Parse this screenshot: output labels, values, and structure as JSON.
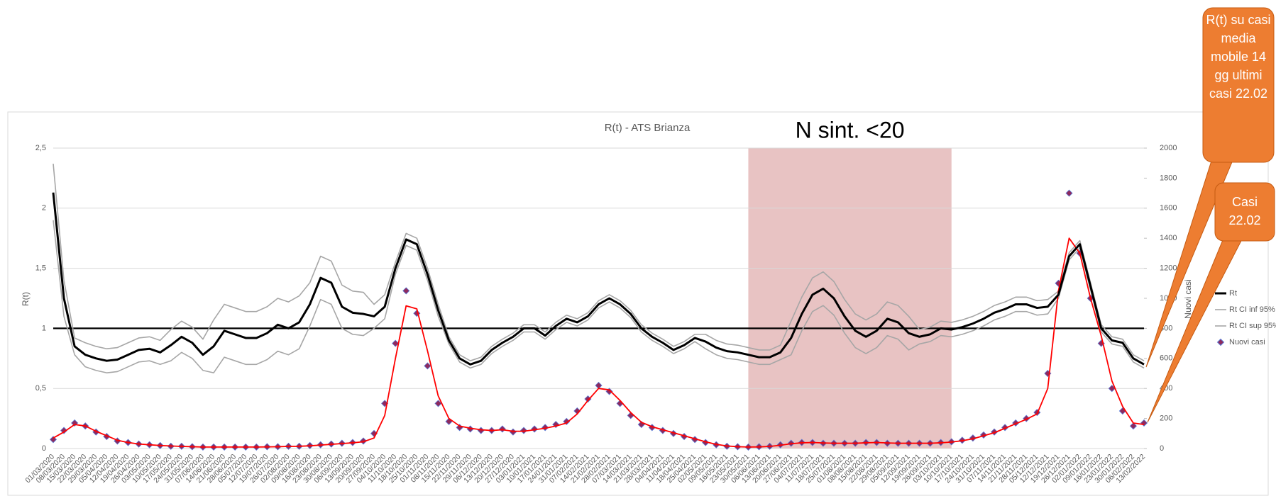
{
  "chart_data": {
    "type": "line",
    "title": "R(t) - ATS Brianza",
    "ylabel": "R(t)",
    "y2label": "Nuovi casi",
    "categories": [
      "01/03/2020",
      "08/03/2020",
      "15/03/2020",
      "22/03/2020",
      "29/03/2020",
      "05/04/2020",
      "12/04/2020",
      "19/04/2020",
      "26/04/2020",
      "03/05/2020",
      "10/05/2020",
      "17/05/2020",
      "24/05/2020",
      "31/05/2020",
      "07/06/2020",
      "14/06/2020",
      "21/06/2020",
      "28/06/2020",
      "05/07/2020",
      "12/07/2020",
      "19/07/2020",
      "26/07/2020",
      "02/08/2020",
      "09/08/2020",
      "16/08/2020",
      "23/08/2020",
      "30/08/2020",
      "06/09/2020",
      "13/09/2020",
      "20/09/2020",
      "27/09/2020",
      "04/10/2020",
      "11/10/2020",
      "18/10/2020",
      "25/10/2020",
      "01/11/2020",
      "08/11/2020",
      "15/11/2020",
      "22/11/2020",
      "29/11/2020",
      "06/12/2020",
      "13/12/2020",
      "20/12/2020",
      "27/12/2020",
      "03/01/2021",
      "10/01/2021",
      "17/01/2021",
      "24/01/2021",
      "31/01/2021",
      "07/02/2021",
      "14/02/2021",
      "21/02/2021",
      "28/02/2021",
      "07/03/2021",
      "14/03/2021",
      "21/03/2021",
      "28/03/2021",
      "04/04/2021",
      "11/04/2021",
      "18/04/2021",
      "25/04/2021",
      "02/05/2021",
      "09/05/2021",
      "16/05/2021",
      "23/05/2021",
      "30/05/2021",
      "06/06/2021",
      "13/06/2021",
      "20/06/2021",
      "27/06/2021",
      "04/07/2021",
      "11/07/2021",
      "18/07/2021",
      "25/07/2021",
      "01/08/2021",
      "08/08/2021",
      "15/08/2021",
      "22/08/2021",
      "29/08/2021",
      "05/09/2021",
      "12/09/2021",
      "19/09/2021",
      "26/09/2021",
      "03/10/2021",
      "10/10/2021",
      "17/10/2021",
      "24/10/2021",
      "31/10/2021",
      "07/11/2021",
      "14/11/2021",
      "21/11/2021",
      "28/11/2021",
      "05/12/2021",
      "12/12/2021",
      "19/12/2021",
      "26/12/2021",
      "02/01/2022",
      "09/01/2022",
      "16/01/2022",
      "23/01/2022",
      "30/01/2022",
      "06/02/2022",
      "13/02/2022"
    ],
    "series": [
      {
        "name": "Rt",
        "color": "#000000",
        "width": 3,
        "values": [
          2.13,
          1.25,
          0.85,
          0.78,
          0.75,
          0.73,
          0.74,
          0.78,
          0.82,
          0.83,
          0.8,
          0.86,
          0.93,
          0.88,
          0.78,
          0.85,
          0.98,
          0.95,
          0.92,
          0.92,
          0.96,
          1.03,
          1.0,
          1.05,
          1.2,
          1.42,
          1.38,
          1.18,
          1.13,
          1.12,
          1.1,
          1.18,
          1.5,
          1.74,
          1.7,
          1.45,
          1.15,
          0.9,
          0.75,
          0.7,
          0.73,
          0.82,
          0.88,
          0.93,
          1.0,
          1.0,
          0.94,
          1.02,
          1.08,
          1.05,
          1.1,
          1.2,
          1.25,
          1.2,
          1.12,
          1.0,
          0.93,
          0.88,
          0.82,
          0.86,
          0.92,
          0.89,
          0.84,
          0.81,
          0.8,
          0.78,
          0.76,
          0.76,
          0.8,
          0.92,
          1.12,
          1.28,
          1.33,
          1.25,
          1.1,
          0.98,
          0.93,
          0.98,
          1.08,
          1.05,
          0.96,
          0.93,
          0.95,
          1.0,
          0.99,
          1.01,
          1.04,
          1.08,
          1.13,
          1.16,
          1.2,
          1.2,
          1.17,
          1.18,
          1.28,
          1.6,
          1.7,
          1.35,
          1.0,
          0.9,
          0.88,
          0.75,
          0.7
        ]
      },
      {
        "name": "Rt CI inf 95%",
        "color": "#a6a6a6",
        "width": 1.6,
        "values": [
          1.9,
          1.1,
          0.78,
          0.68,
          0.65,
          0.63,
          0.64,
          0.68,
          0.72,
          0.73,
          0.7,
          0.73,
          0.8,
          0.75,
          0.65,
          0.63,
          0.76,
          0.73,
          0.7,
          0.7,
          0.74,
          0.81,
          0.78,
          0.83,
          1.02,
          1.24,
          1.2,
          1.0,
          0.95,
          0.94,
          1.0,
          1.08,
          1.45,
          1.69,
          1.65,
          1.4,
          1.1,
          0.87,
          0.72,
          0.67,
          0.7,
          0.79,
          0.85,
          0.9,
          0.97,
          0.97,
          0.91,
          0.99,
          1.05,
          1.02,
          1.07,
          1.17,
          1.22,
          1.17,
          1.09,
          0.97,
          0.9,
          0.85,
          0.79,
          0.83,
          0.89,
          0.83,
          0.78,
          0.75,
          0.74,
          0.72,
          0.7,
          0.7,
          0.74,
          0.78,
          0.98,
          1.14,
          1.19,
          1.11,
          0.96,
          0.84,
          0.79,
          0.84,
          0.94,
          0.91,
          0.82,
          0.87,
          0.89,
          0.94,
          0.93,
          0.95,
          0.98,
          1.02,
          1.07,
          1.1,
          1.14,
          1.14,
          1.11,
          1.12,
          1.25,
          1.57,
          1.67,
          1.32,
          0.97,
          0.87,
          0.85,
          0.72,
          0.67
        ]
      },
      {
        "name": "Rt CI sup 95%",
        "color": "#a6a6a6",
        "width": 1.6,
        "values": [
          2.37,
          1.4,
          0.92,
          0.88,
          0.85,
          0.83,
          0.84,
          0.88,
          0.92,
          0.93,
          0.9,
          0.99,
          1.06,
          1.01,
          0.91,
          1.07,
          1.2,
          1.17,
          1.14,
          1.14,
          1.18,
          1.25,
          1.22,
          1.27,
          1.38,
          1.6,
          1.56,
          1.36,
          1.31,
          1.3,
          1.2,
          1.28,
          1.55,
          1.79,
          1.75,
          1.5,
          1.2,
          0.93,
          0.78,
          0.73,
          0.76,
          0.85,
          0.91,
          0.96,
          1.03,
          1.03,
          0.97,
          1.05,
          1.11,
          1.08,
          1.13,
          1.23,
          1.28,
          1.23,
          1.15,
          1.03,
          0.96,
          0.91,
          0.85,
          0.89,
          0.95,
          0.95,
          0.9,
          0.87,
          0.86,
          0.84,
          0.82,
          0.82,
          0.86,
          1.06,
          1.26,
          1.42,
          1.47,
          1.39,
          1.24,
          1.12,
          1.07,
          1.12,
          1.22,
          1.19,
          1.1,
          0.99,
          1.01,
          1.06,
          1.05,
          1.07,
          1.1,
          1.14,
          1.19,
          1.22,
          1.26,
          1.26,
          1.23,
          1.24,
          1.31,
          1.63,
          1.73,
          1.38,
          1.03,
          0.93,
          0.91,
          0.78,
          0.73
        ]
      },
      {
        "name": "Nuovi casi",
        "color": "#8e2a5e",
        "edge": "#5b7bd5",
        "marker": "diamond",
        "axis": "y2",
        "values": [
          60,
          120,
          170,
          150,
          110,
          80,
          50,
          40,
          30,
          25,
          20,
          15,
          15,
          12,
          10,
          10,
          10,
          10,
          10,
          10,
          12,
          12,
          15,
          15,
          20,
          25,
          30,
          35,
          40,
          50,
          100,
          300,
          700,
          1050,
          900,
          550,
          300,
          180,
          140,
          130,
          120,
          120,
          130,
          110,
          120,
          130,
          140,
          160,
          180,
          250,
          330,
          420,
          380,
          300,
          220,
          160,
          140,
          120,
          100,
          80,
          60,
          40,
          25,
          15,
          12,
          10,
          12,
          15,
          25,
          35,
          40,
          40,
          35,
          35,
          35,
          35,
          40,
          40,
          35,
          35,
          35,
          35,
          35,
          40,
          45,
          55,
          70,
          90,
          110,
          140,
          170,
          200,
          240,
          500,
          1100,
          1700,
          1300,
          1000,
          700,
          400,
          250,
          150,
          170
        ]
      },
      {
        "color": "#ff0000",
        "width": 1.8,
        "axis": "y2",
        "values": [
          70,
          110,
          160,
          150,
          115,
          85,
          55,
          40,
          30,
          25,
          20,
          17,
          14,
          12,
          10,
          10,
          10,
          10,
          10,
          10,
          11,
          12,
          14,
          15,
          18,
          23,
          28,
          33,
          38,
          45,
          70,
          220,
          600,
          950,
          930,
          650,
          350,
          200,
          150,
          135,
          125,
          120,
          125,
          115,
          115,
          125,
          135,
          150,
          170,
          230,
          320,
          400,
          390,
          320,
          240,
          175,
          145,
          125,
          105,
          85,
          65,
          45,
          28,
          17,
          12,
          10,
          11,
          14,
          22,
          32,
          38,
          40,
          37,
          35,
          35,
          35,
          38,
          40,
          37,
          35,
          35,
          35,
          35,
          38,
          43,
          52,
          65,
          85,
          105,
          135,
          165,
          195,
          230,
          400,
          1050,
          1400,
          1300,
          1000,
          750,
          450,
          280,
          170,
          160
        ]
      }
    ],
    "ylim": [
      0,
      2.5
    ],
    "yticks": [
      0,
      {
        "value": 0.5,
        "label": "0,5"
      },
      1,
      {
        "value": 1.5,
        "label": "1,5"
      },
      2,
      {
        "value": 2.5,
        "label": "2,5"
      }
    ],
    "y2lim": [
      0,
      2000
    ],
    "y2ticks": [
      0,
      200,
      400,
      600,
      800,
      1000,
      1200,
      1400,
      1600,
      1800,
      2000
    ],
    "grid": true,
    "hline": 1,
    "shade": {
      "label": "N sint. <20",
      "from": "30/05/2021",
      "to": "10/10/2021",
      "color": "#e8c3c3"
    },
    "legend": "right",
    "annotations": [
      "R(t) su casi media mobile 14 gg ultimi casi 22.02",
      "Casi 22.02"
    ]
  }
}
